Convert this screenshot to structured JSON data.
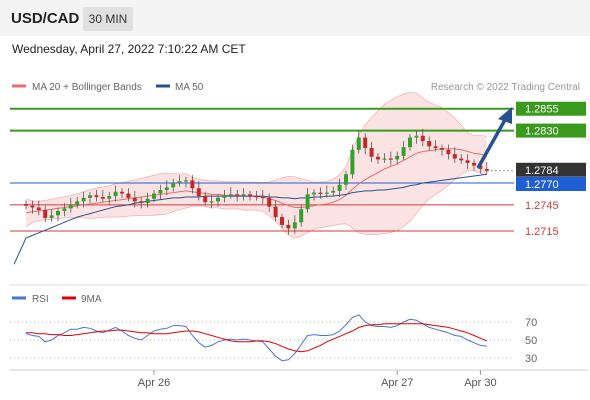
{
  "header": {
    "pair": "USD/CAD",
    "timeframe": "30 MIN",
    "datetime": "Wednesday, April 27, 2022 7:10:22 AM CET"
  },
  "legend": {
    "ma20_label": "MA 20 + Bollinger Bands",
    "ma50_label": "MA 50",
    "source": "Research © 2022 Trading Central",
    "ma20_color": "#e86e6e",
    "ma50_color": "#27528f"
  },
  "rsi_legend": {
    "rsi_label": "RSI",
    "ma_label": "9MA",
    "rsi_color": "#4a74d6",
    "ma_color": "#e00000"
  },
  "levels": [
    {
      "value": "1.2855",
      "kind": "resistance",
      "color": "#3a9a1e"
    },
    {
      "value": "1.2830",
      "kind": "resistance",
      "color": "#3a9a1e"
    },
    {
      "value": "1.2784",
      "kind": "current",
      "color": "#333333"
    },
    {
      "value": "1.2770",
      "kind": "pivot",
      "color": "#1f5fd6"
    },
    {
      "value": "1.2745",
      "kind": "support",
      "color": "#d23a3a"
    },
    {
      "value": "1.2715",
      "kind": "support",
      "color": "#d23a3a"
    }
  ],
  "x_labels": [
    "Apr 26",
    "Apr 27",
    "Apr 30"
  ],
  "rsi_ticks": [
    "70",
    "50",
    "30"
  ],
  "chart_data": {
    "type": "candlestick",
    "price_ylim": [
      1.2675,
      1.2865
    ],
    "rsi_ylim": [
      20,
      80
    ],
    "closes": [
      1.2744,
      1.2742,
      1.2739,
      1.273,
      1.2733,
      1.2738,
      1.2741,
      1.2745,
      1.2749,
      1.2753,
      1.2756,
      1.2754,
      1.2752,
      1.2755,
      1.276,
      1.2758,
      1.2753,
      1.2749,
      1.2747,
      1.2752,
      1.2758,
      1.2762,
      1.2765,
      1.277,
      1.2772,
      1.2773,
      1.2764,
      1.2755,
      1.2748,
      1.2749,
      1.2753,
      1.2756,
      1.2757,
      1.2756,
      1.2757,
      1.2755,
      1.2754,
      1.2753,
      1.2743,
      1.2731,
      1.2722,
      1.2718,
      1.2725,
      1.274,
      1.2757,
      1.2759,
      1.2758,
      1.2759,
      1.2761,
      1.2768,
      1.278,
      1.2808,
      1.2822,
      1.281,
      1.28,
      1.2797,
      1.2798,
      1.2797,
      1.2801,
      1.2811,
      1.2822,
      1.2824,
      1.2818,
      1.2812,
      1.281,
      1.2808,
      1.2803,
      1.2798,
      1.2796,
      1.2793,
      1.279,
      1.2786,
      1.2784
    ],
    "ma20": [
      1.2736,
      1.2737,
      1.2738,
      1.2739,
      1.274,
      1.2741,
      1.2742,
      1.2743,
      1.2744,
      1.2745,
      1.2746,
      1.2747,
      1.2748,
      1.2749,
      1.275,
      1.2751,
      1.2752,
      1.2753,
      1.2754,
      1.2755,
      1.2756,
      1.2757,
      1.2758,
      1.2759,
      1.276,
      1.2761,
      1.276,
      1.2759,
      1.2758,
      1.2757,
      1.2757,
      1.2756,
      1.2756,
      1.2756,
      1.2755,
      1.2755,
      1.2755,
      1.2754,
      1.2752,
      1.275,
      1.2747,
      1.2744,
      1.2742,
      1.2742,
      1.2743,
      1.2744,
      1.2745,
      1.2746,
      1.2748,
      1.2751,
      1.2756,
      1.2763,
      1.2769,
      1.2774,
      1.2778,
      1.2782,
      1.2786,
      1.2789,
      1.2792,
      1.2796,
      1.28,
      1.2804,
      1.2806,
      1.2807,
      1.2808,
      1.2809,
      1.2809,
      1.2809,
      1.2808,
      1.2806,
      1.2804,
      1.2803,
      1.2801
    ],
    "ma50": [
      1.2707,
      1.271,
      1.2713,
      1.2716,
      1.2719,
      1.2722,
      1.2725,
      1.2728,
      1.2731,
      1.2733,
      1.2735,
      1.2737,
      1.2739,
      1.2741,
      1.2743,
      1.2744,
      1.2745,
      1.2747,
      1.2748,
      1.2749,
      1.275,
      1.2751,
      1.2752,
      1.2753,
      1.2753,
      1.2754,
      1.2754,
      1.2754,
      1.2755,
      1.2755,
      1.2755,
      1.2755,
      1.2755,
      1.2755,
      1.2755,
      1.2755,
      1.2755,
      1.2755,
      1.2754,
      1.2754,
      1.2753,
      1.2753,
      1.2752,
      1.2753,
      1.2753,
      1.2754,
      1.2754,
      1.2755,
      1.2755,
      1.2756,
      1.2757,
      1.2759,
      1.276,
      1.2761,
      1.2761,
      1.2762,
      1.2762,
      1.2763,
      1.2764,
      1.2765,
      1.2767,
      1.2768,
      1.277,
      1.2771,
      1.2772,
      1.2773,
      1.2774,
      1.2775,
      1.2776,
      1.2777,
      1.2778,
      1.2779,
      1.278
    ],
    "rsi": [
      57,
      55,
      54,
      48,
      50,
      55,
      58,
      62,
      62,
      64,
      63,
      60,
      58,
      61,
      64,
      60,
      55,
      52,
      50,
      55,
      60,
      62,
      63,
      66,
      66,
      65,
      55,
      47,
      42,
      44,
      48,
      50,
      51,
      50,
      51,
      50,
      49,
      48,
      40,
      32,
      27,
      28,
      35,
      45,
      55,
      56,
      55,
      55,
      56,
      60,
      67,
      75,
      78,
      70,
      66,
      65,
      65,
      64,
      66,
      70,
      73,
      72,
      68,
      64,
      62,
      60,
      58,
      55,
      54,
      50,
      47,
      44,
      43
    ],
    "rsi_ma": [
      58,
      58,
      57,
      57,
      56,
      56,
      55,
      55,
      56,
      57,
      58,
      59,
      60,
      60,
      61,
      61,
      60,
      59,
      58,
      58,
      57,
      57,
      57,
      58,
      59,
      60,
      60,
      59,
      57,
      55,
      53,
      51,
      49,
      48,
      48,
      48,
      49,
      49,
      48,
      46,
      43,
      40,
      38,
      37,
      38,
      41,
      44,
      48,
      51,
      54,
      57,
      60,
      64,
      66,
      67,
      67,
      68,
      68,
      68,
      68,
      68,
      68,
      68,
      67,
      66,
      65,
      64,
      62,
      60,
      58,
      55,
      52,
      49
    ],
    "x_tick_indices": [
      20,
      58,
      71
    ]
  }
}
